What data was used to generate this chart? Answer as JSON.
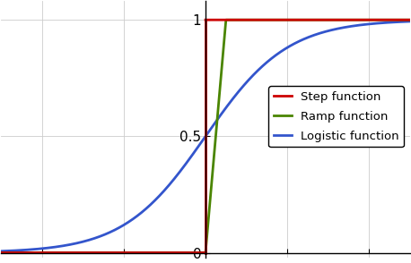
{
  "title": "",
  "xlim": [
    -5,
    5
  ],
  "ylim": [
    -0.02,
    1.08
  ],
  "yticks": [
    0,
    0.5,
    1
  ],
  "ytick_labels": [
    "0",
    "0.5",
    "1"
  ],
  "grid": true,
  "step_color": "#cc0000",
  "ramp_color": "#4a8500",
  "logistic_color": "#3355cc",
  "step_label": "Step function",
  "ramp_label": "Ramp function",
  "logistic_label": "Logistic function",
  "linewidth": 2.0,
  "legend_fontsize": 9.5,
  "background_color": "#ffffff",
  "ramp_slope": 2.0,
  "logistic_scale": 1.0,
  "step_at": 0
}
